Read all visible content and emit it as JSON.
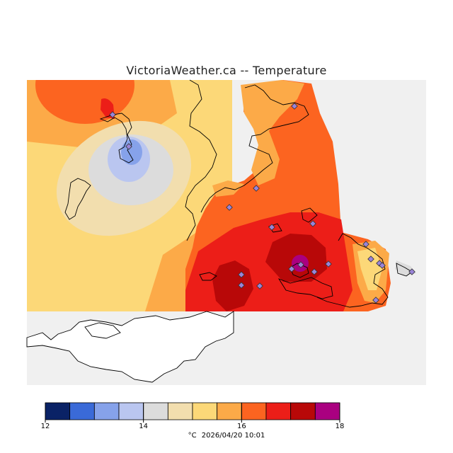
{
  "title": "VictoriaWeather.ca -- Temperature",
  "legend": {
    "ticks": [
      {
        "value": "12",
        "label": "12"
      },
      {
        "value": "14",
        "label": "14"
      },
      {
        "value": "16",
        "label": "16"
      },
      {
        "value": "18",
        "label": "18"
      }
    ],
    "bins": [
      {
        "from": 12.0,
        "to": 12.5,
        "color": "#0a2266"
      },
      {
        "from": 12.5,
        "to": 13.0,
        "color": "#3a6ad8"
      },
      {
        "from": 13.0,
        "to": 13.5,
        "color": "#86a2ea"
      },
      {
        "from": 13.5,
        "to": 14.0,
        "color": "#bac6f0"
      },
      {
        "from": 14.0,
        "to": 14.5,
        "color": "#dcdcdc"
      },
      {
        "from": 14.5,
        "to": 15.0,
        "color": "#f2deae"
      },
      {
        "from": 15.0,
        "to": 15.5,
        "color": "#fcd878"
      },
      {
        "from": 15.5,
        "to": 16.0,
        "color": "#fcaa48"
      },
      {
        "from": 16.0,
        "to": 16.5,
        "color": "#fc6420"
      },
      {
        "from": 16.5,
        "to": 17.0,
        "color": "#ec1e18"
      },
      {
        "from": 17.0,
        "to": 17.5,
        "color": "#b80808"
      },
      {
        "from": 17.5,
        "to": 18.0,
        "color": "#aa0080"
      }
    ],
    "unit": "°C",
    "timestamp": "2026/04/20 10:01"
  },
  "colors": {
    "background_water": "#f0f0f0",
    "station_marker": "#9a84d8",
    "coastline": "#000000"
  }
}
